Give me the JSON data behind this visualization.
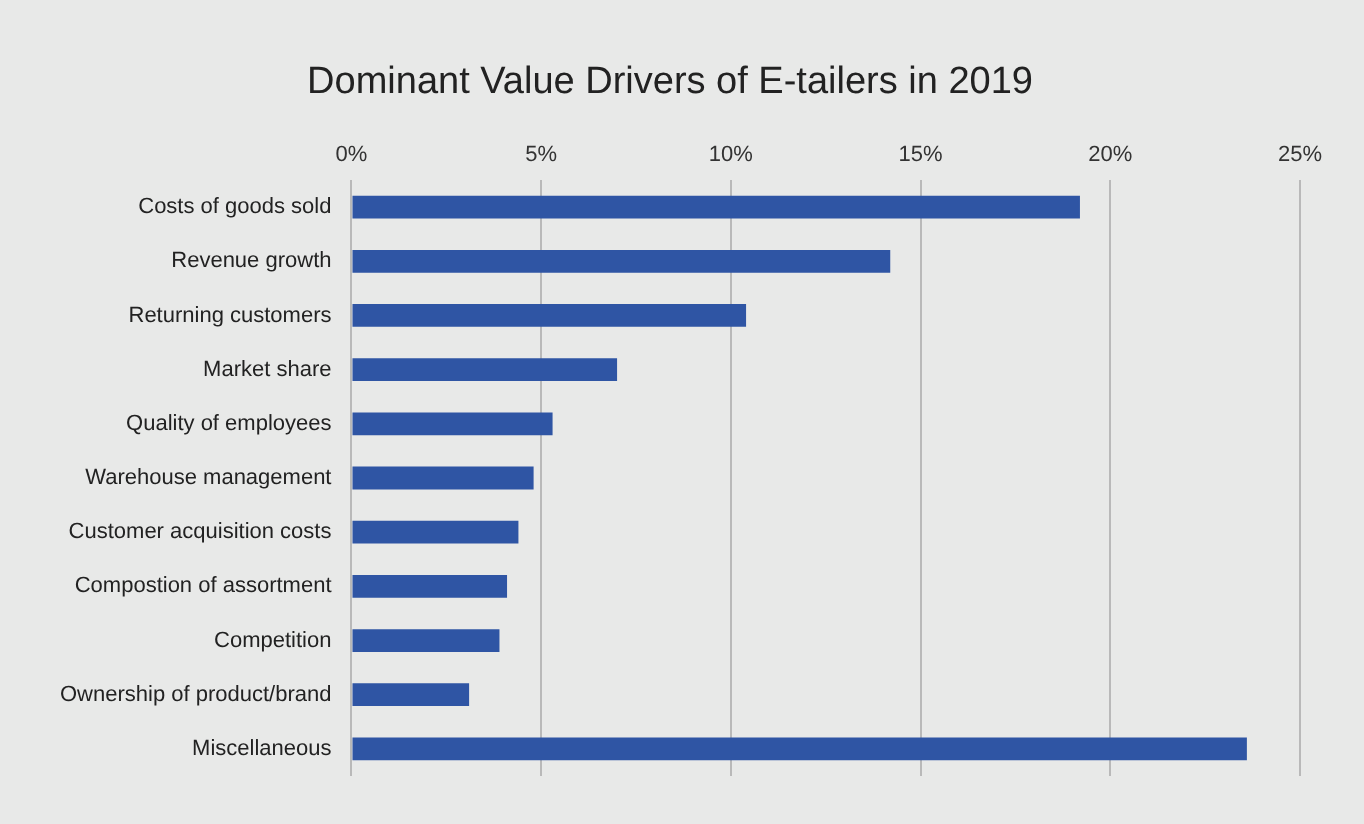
{
  "chart_data": {
    "type": "bar",
    "orientation": "horizontal",
    "title": "Dominant Value Drivers of E-tailers in 2019",
    "categories": [
      "Costs of goods sold",
      "Revenue growth",
      "Returning customers",
      "Market share",
      "Quality of employees",
      "Warehouse management",
      "Customer acquisition costs",
      "Compostion of assortment",
      "Competition",
      "Ownership of product/brand",
      "Miscellaneous"
    ],
    "values": [
      19.2,
      14.2,
      10.4,
      7.0,
      5.3,
      4.8,
      4.4,
      4.1,
      3.9,
      3.1,
      23.6
    ],
    "color": "#2f55a4",
    "xlim": [
      0,
      25
    ],
    "xticks": [
      {
        "value": 0,
        "label": "0%"
      },
      {
        "value": 5,
        "label": "5%"
      },
      {
        "value": 10,
        "label": "10%"
      },
      {
        "value": 15,
        "label": "15%"
      },
      {
        "value": 20,
        "label": "20%"
      },
      {
        "value": 25,
        "label": "25%"
      }
    ],
    "grid": "x",
    "legend": false
  }
}
